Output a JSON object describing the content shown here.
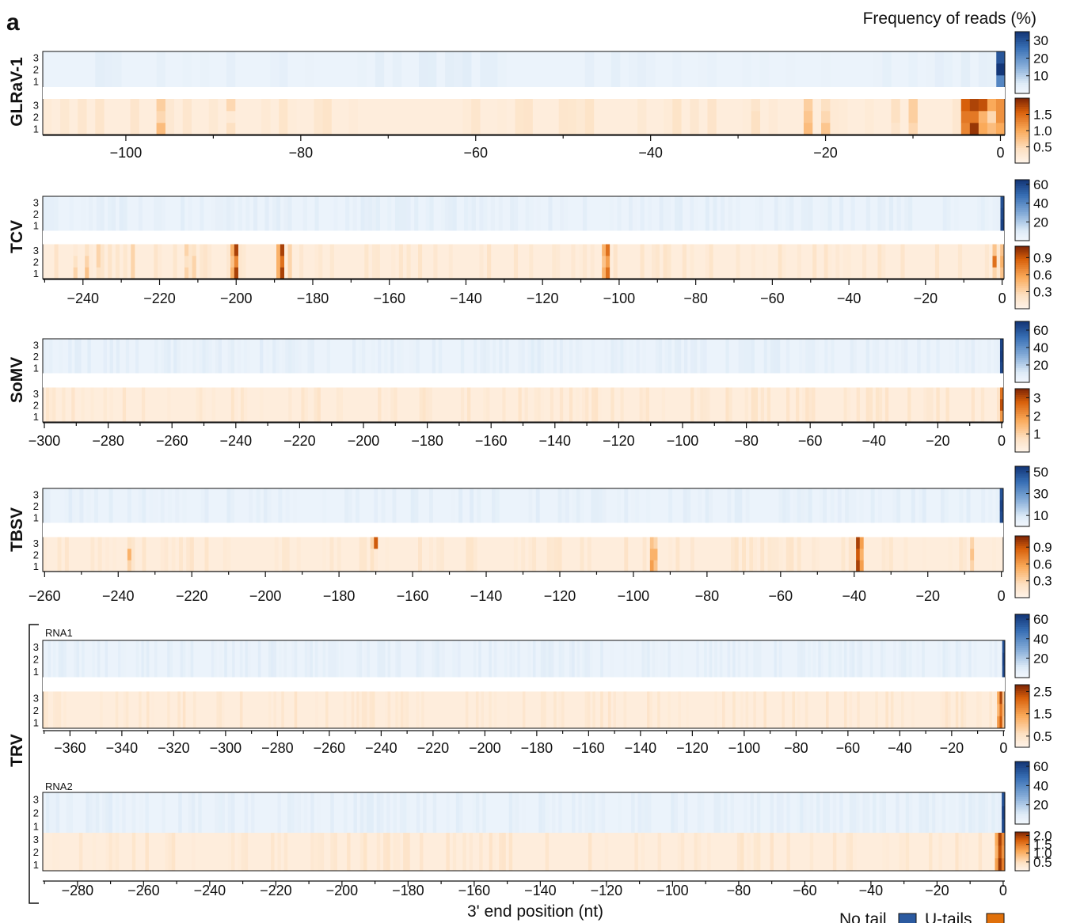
{
  "chart_data": {
    "type": "heatmap",
    "panel_label": "a",
    "colorbar_title": "Frequency of reads (%)",
    "xlabel": "3' end position (nt)",
    "legend": [
      {
        "label": "No tail",
        "color": "#2b5aa0"
      },
      {
        "label": "U-tails",
        "color": "#e0700a"
      }
    ],
    "replicates": [
      "1",
      "2",
      "3"
    ],
    "panels": [
      {
        "virus": "GLRaV-1",
        "x_range": [
          -109,
          0
        ],
        "x_ticks": [
          "-100",
          "-80",
          "-60",
          "-40",
          "-20",
          "0"
        ],
        "no_tail": {
          "colorbar_ticks": [
            "30",
            "20",
            "10"
          ],
          "max": 35,
          "peaks": [
            {
              "x": 0,
              "values": [
                22,
                35,
                30
              ]
            },
            {
              "x": -1,
              "values": [
                3,
                3,
                3
              ]
            }
          ]
        },
        "u_tails": {
          "colorbar_ticks": [
            "1.5",
            "1.0",
            "0.5"
          ],
          "max": 2.0,
          "peaks": [
            {
              "x": -96,
              "values": [
                0.8,
                0.5,
                0.6
              ]
            },
            {
              "x": -88,
              "values": [
                0.4,
                0.2,
                0.5
              ]
            },
            {
              "x": -28,
              "values": [
                0.4,
                0.4,
                0.3
              ]
            },
            {
              "x": -22,
              "values": [
                0.8,
                0.7,
                0.6
              ]
            },
            {
              "x": -20,
              "values": [
                0.7,
                0.5,
                0.4
              ]
            },
            {
              "x": -12,
              "values": [
                0.3,
                0.4,
                0.4
              ]
            },
            {
              "x": -10,
              "values": [
                0.5,
                0.6,
                0.6
              ]
            },
            {
              "x": -4,
              "values": [
                1.3,
                1.4,
                1.6
              ]
            },
            {
              "x": -3,
              "values": [
                1.9,
                1.4,
                1.8
              ]
            },
            {
              "x": -2,
              "values": [
                1.0,
                0.9,
                1.7
              ]
            },
            {
              "x": -1,
              "values": [
                0.8,
                0.5,
                1.0
              ]
            },
            {
              "x": 0,
              "values": [
                1.0,
                1.2,
                1.2
              ]
            }
          ]
        }
      },
      {
        "virus": "TCV",
        "x_range": [
          -250,
          0
        ],
        "x_ticks": [
          "-240",
          "-220",
          "-200",
          "-180",
          "-160",
          "-140",
          "-120",
          "-100",
          "-80",
          "-60",
          "-40",
          "-20",
          "0"
        ],
        "no_tail": {
          "colorbar_ticks": [
            "60",
            "40",
            "20"
          ],
          "max": 65,
          "peaks": [
            {
              "x": 0,
              "values": [
                62,
                60,
                58
              ]
            },
            {
              "x": -1,
              "values": [
                5,
                5,
                5
              ]
            }
          ]
        },
        "u_tails": {
          "colorbar_ticks": [
            "0.9",
            "0.6",
            "0.3"
          ],
          "max": 1.1,
          "peaks": [
            {
              "x": -242,
              "values": [
                0.3,
                0.2,
                0.1
              ]
            },
            {
              "x": -239,
              "values": [
                0.4,
                0.3,
                0.2
              ]
            },
            {
              "x": -236,
              "values": [
                0.2,
                0.3,
                0.3
              ]
            },
            {
              "x": -227,
              "values": [
                0.3,
                0.3,
                0.3
              ]
            },
            {
              "x": -213,
              "values": [
                0.3,
                0.2,
                0.3
              ]
            },
            {
              "x": -211,
              "values": [
                0.3,
                0.3,
                0.2
              ]
            },
            {
              "x": -201,
              "values": [
                0.5,
                0.4,
                0.5
              ]
            },
            {
              "x": -200,
              "values": [
                1.0,
                0.7,
                1.0
              ]
            },
            {
              "x": -189,
              "values": [
                0.5,
                0.5,
                0.5
              ]
            },
            {
              "x": -188,
              "values": [
                1.0,
                0.8,
                1.0
              ]
            },
            {
              "x": -186,
              "values": [
                0.3,
                0.3,
                0.3
              ]
            },
            {
              "x": -104,
              "values": [
                0.5,
                0.4,
                0.5
              ]
            },
            {
              "x": -103,
              "values": [
                0.8,
                0.6,
                0.8
              ]
            },
            {
              "x": -2,
              "values": [
                0.3,
                0.8,
                0.4
              ]
            },
            {
              "x": 0,
              "values": [
                0.4,
                0.5,
                0.4
              ]
            }
          ]
        }
      },
      {
        "virus": "SoMV",
        "x_range": [
          -300,
          0
        ],
        "x_ticks": [
          "-300",
          "-280",
          "-260",
          "-240",
          "-220",
          "-200",
          "-180",
          "-160",
          "-140",
          "-120",
          "-100",
          "-80",
          "-60",
          "-40",
          "-20",
          "0"
        ],
        "no_tail": {
          "colorbar_ticks": [
            "60",
            "40",
            "20"
          ],
          "max": 70,
          "peaks": [
            {
              "x": 0,
              "values": [
                65,
                68,
                66
              ]
            }
          ]
        },
        "u_tails": {
          "colorbar_ticks": [
            "3",
            "2",
            "1"
          ],
          "max": 3.5,
          "peaks": [
            {
              "x": -61,
              "values": [
                0.6,
                0.6,
                0.6
              ]
            },
            {
              "x": -106,
              "values": [
                0.3,
                0.3,
                0.3
              ]
            },
            {
              "x": -1,
              "values": [
                0.6,
                0.6,
                0.6
              ]
            },
            {
              "x": 0,
              "values": [
                2.0,
                3.0,
                2.5
              ]
            }
          ]
        }
      },
      {
        "virus": "TBSV",
        "x_range": [
          -260,
          0
        ],
        "x_ticks": [
          "-260",
          "-240",
          "-220",
          "-200",
          "-180",
          "-160",
          "-140",
          "-120",
          "-100",
          "-80",
          "-60",
          "-40",
          "-20",
          "0"
        ],
        "no_tail": {
          "colorbar_ticks": [
            "50",
            "30",
            "10"
          ],
          "max": 55,
          "peaks": [
            {
              "x": 0,
              "values": [
                50,
                52,
                48
              ]
            },
            {
              "x": -1,
              "values": [
                4,
                4,
                4
              ]
            }
          ]
        },
        "u_tails": {
          "colorbar_ticks": [
            "0.9",
            "0.6",
            "0.3"
          ],
          "max": 1.1,
          "peaks": [
            {
              "x": -237,
              "values": [
                0.3,
                0.5,
                0.2
              ]
            },
            {
              "x": -171,
              "values": [
                0.2,
                0.2,
                0.3
              ]
            },
            {
              "x": -170,
              "values": [
                0.1,
                0.1,
                0.9
              ]
            },
            {
              "x": -95,
              "values": [
                0.6,
                0.5,
                0.4
              ]
            },
            {
              "x": -94,
              "values": [
                0.4,
                0.5,
                0.3
              ]
            },
            {
              "x": -39,
              "values": [
                1.0,
                0.9,
                1.0
              ]
            },
            {
              "x": -38,
              "values": [
                0.6,
                0.5,
                0.6
              ]
            },
            {
              "x": -8,
              "values": [
                0.3,
                0.4,
                0.3
              ]
            }
          ]
        }
      },
      {
        "virus": "TRV",
        "rna": "RNA1",
        "x_range": [
          -370,
          0
        ],
        "x_ticks": [
          "-360",
          "-340",
          "-320",
          "-300",
          "-280",
          "-260",
          "-240",
          "-220",
          "-200",
          "-180",
          "-160",
          "-140",
          "-120",
          "-100",
          "-80",
          "-60",
          "-40",
          "-20",
          "0"
        ],
        "no_tail": {
          "colorbar_ticks": [
            "60",
            "40",
            "20"
          ],
          "max": 65,
          "peaks": [
            {
              "x": 0,
              "values": [
                60,
                62,
                58
              ]
            }
          ]
        },
        "u_tails": {
          "colorbar_ticks": [
            "2.5",
            "1.5",
            "0.5"
          ],
          "max": 2.8,
          "peaks": [
            {
              "x": -2,
              "values": [
                1.6,
                1.2,
                1.4
              ]
            },
            {
              "x": -1,
              "values": [
                2.3,
                2.0,
                2.5
              ]
            },
            {
              "x": 0,
              "values": [
                1.0,
                1.2,
                1.0
              ]
            }
          ]
        }
      },
      {
        "virus": "TRV",
        "rna": "RNA2",
        "x_range": [
          -290,
          0
        ],
        "x_ticks": [
          "-280",
          "-260",
          "-240",
          "-220",
          "-200",
          "-180",
          "-160",
          "-140",
          "-120",
          "-100",
          "-80",
          "-60",
          "-40",
          "-20",
          "0"
        ],
        "no_tail": {
          "colorbar_ticks": [
            "60",
            "40",
            "20"
          ],
          "max": 65,
          "peaks": [
            {
              "x": 0,
              "values": [
                60,
                62,
                58
              ]
            },
            {
              "x": -1,
              "values": [
                6,
                6,
                6
              ]
            }
          ]
        },
        "u_tails": {
          "colorbar_ticks": [
            "2.0",
            "1.5",
            "1.0",
            "0.5"
          ],
          "max": 2.2,
          "peaks": [
            {
              "x": -2,
              "values": [
                1.2,
                1.0,
                1.1
              ]
            },
            {
              "x": -1,
              "values": [
                2.1,
                1.9,
                2.0
              ]
            },
            {
              "x": 0,
              "values": [
                1.5,
                1.3,
                1.4
              ]
            }
          ]
        }
      }
    ]
  }
}
